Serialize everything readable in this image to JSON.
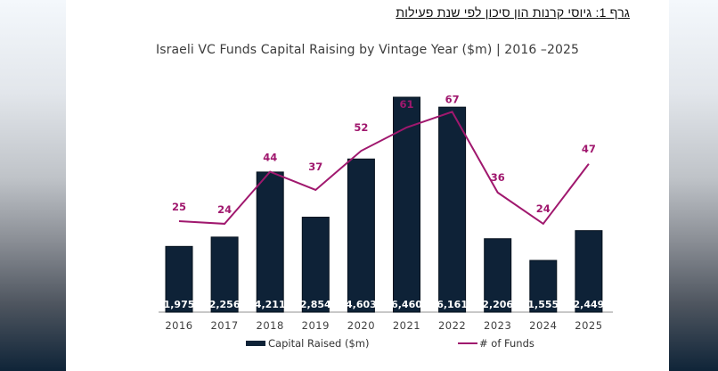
{
  "caption": "גרף 1: גיוסי קרנות הון סיכון לפי שנת פעילות",
  "chart_data": {
    "type": "bar",
    "title": "Israeli VC Funds Capital Raising  by Vintage  Year ($m) | 2016 –2025",
    "xlabel": "",
    "ylabel": "",
    "categories": [
      "2016",
      "2017",
      "2018",
      "2019",
      "2020",
      "2021",
      "2022",
      "2023",
      "2024",
      "2025"
    ],
    "series": [
      {
        "name": "Capital Raised ($m)",
        "kind": "bar",
        "color": "#0e2237",
        "values": [
          1975,
          2256,
          4211,
          2854,
          4603,
          6460,
          6161,
          2206,
          1555,
          2449
        ],
        "labels": [
          "1,975",
          "2,256",
          "4,211",
          "2,854",
          "4,603",
          "6,460",
          "6,161",
          "2,206",
          "1,555",
          "2,449"
        ]
      },
      {
        "name": "# of Funds",
        "kind": "line",
        "color": "#a0186e",
        "values": [
          25,
          24,
          44,
          37,
          52,
          61,
          67,
          36,
          24,
          47
        ],
        "labels": [
          "25",
          "24",
          "44",
          "37",
          "52",
          "61",
          "67",
          "36",
          "24",
          "47"
        ]
      }
    ],
    "ylim_bars": [
      0,
      6460
    ],
    "ylim_line": [
      0,
      67
    ],
    "grid": false,
    "legend": "bottom"
  }
}
